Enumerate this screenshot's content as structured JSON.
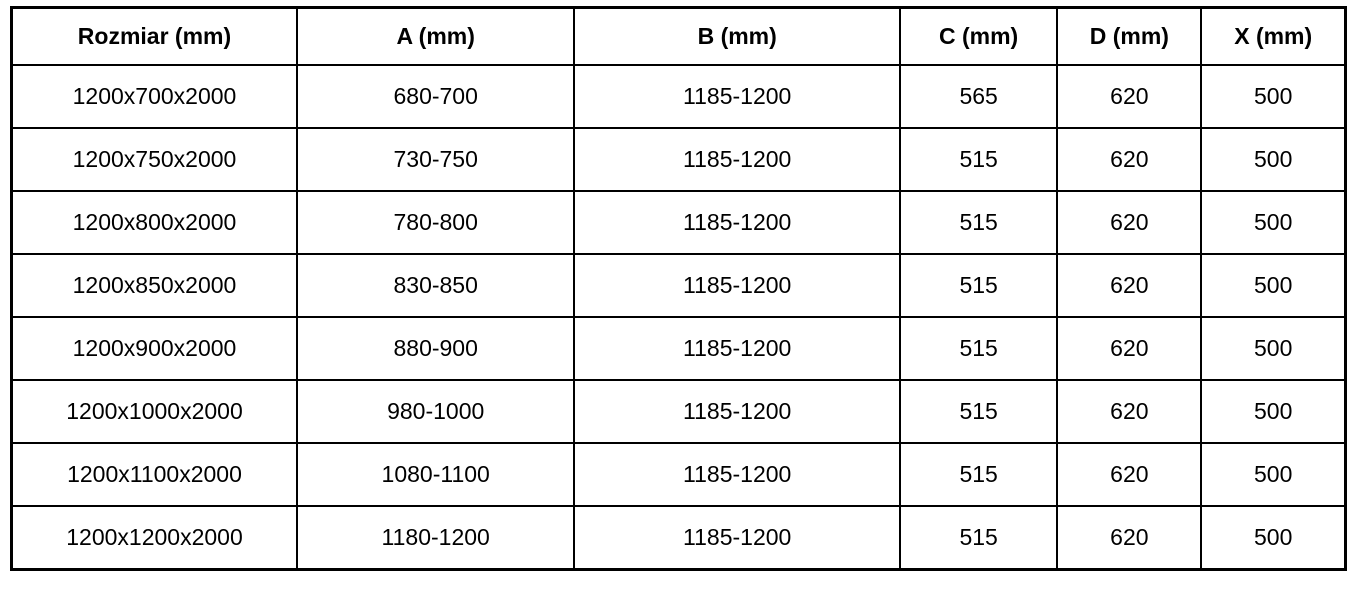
{
  "colors": {
    "background": "#ffffff",
    "border": "#000000",
    "text": "#000000"
  },
  "table": {
    "headers": [
      "Rozmiar (mm)",
      "A (mm)",
      "B (mm)",
      "C (mm)",
      "D (mm)",
      "X (mm)"
    ],
    "rows": [
      [
        "1200x700x2000",
        "680-700",
        "1185-1200",
        "565",
        "620",
        "500"
      ],
      [
        "1200x750x2000",
        "730-750",
        "1185-1200",
        "515",
        "620",
        "500"
      ],
      [
        "1200x800x2000",
        "780-800",
        "1185-1200",
        "515",
        "620",
        "500"
      ],
      [
        "1200x850x2000",
        "830-850",
        "1185-1200",
        "515",
        "620",
        "500"
      ],
      [
        "1200x900x2000",
        "880-900",
        "1185-1200",
        "515",
        "620",
        "500"
      ],
      [
        "1200x1000x2000",
        "980-1000",
        "1185-1200",
        "515",
        "620",
        "500"
      ],
      [
        "1200x1100x2000",
        "1080-1100",
        "1185-1200",
        "515",
        "620",
        "500"
      ],
      [
        "1200x1200x2000",
        "1180-1200",
        "1185-1200",
        "515",
        "620",
        "500"
      ]
    ]
  }
}
